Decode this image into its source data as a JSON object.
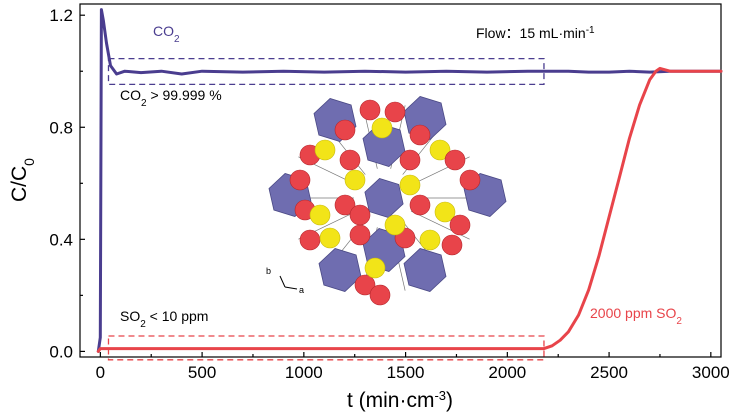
{
  "chart_data": {
    "type": "line",
    "xlabel": "t (min·cm",
    "xlabel_sup": "-3",
    "xlabel_close": ")",
    "ylabel": "C/C",
    "ylabel_sub": "0",
    "xlim": [
      -100,
      3050
    ],
    "ylim": [
      -0.02,
      1.24
    ],
    "x_ticks": [
      0,
      500,
      1000,
      1500,
      2000,
      2500,
      3000
    ],
    "y_ticks": [
      0.0,
      0.4,
      0.8,
      1.2
    ],
    "y_tick_labels": [
      "0.0",
      "0.4",
      "0.8",
      "1.2"
    ],
    "grid": false,
    "series": [
      {
        "name": "CO2",
        "color": "#4a3d8f",
        "x": [
          -10,
          0,
          5,
          15,
          30,
          50,
          80,
          120,
          200,
          300,
          400,
          500,
          700,
          900,
          1100,
          1300,
          1500,
          1700,
          1900,
          2100,
          2200,
          2300,
          2400,
          2500,
          2600,
          2700,
          2800,
          2900,
          3050
        ],
        "y": [
          0.0,
          0.05,
          1.22,
          1.18,
          1.1,
          1.02,
          0.99,
          1.0,
          0.995,
          1.0,
          0.99,
          1.0,
          0.997,
          1.0,
          0.997,
          1.0,
          0.997,
          1.0,
          0.997,
          1.0,
          1.0,
          1.0,
          0.997,
          0.997,
          1.0,
          0.997,
          1.0,
          1.0,
          1.0
        ]
      },
      {
        "name": "SO2",
        "color": "#e8444a",
        "x": [
          -10,
          0,
          100,
          500,
          1000,
          1500,
          2000,
          2180,
          2220,
          2260,
          2300,
          2350,
          2400,
          2450,
          2500,
          2550,
          2600,
          2650,
          2700,
          2730,
          2750,
          2800,
          2900,
          3050
        ],
        "y": [
          0.0,
          0.01,
          0.01,
          0.01,
          0.01,
          0.01,
          0.01,
          0.01,
          0.02,
          0.04,
          0.07,
          0.13,
          0.22,
          0.34,
          0.48,
          0.62,
          0.76,
          0.88,
          0.97,
          1.0,
          1.01,
          1.0,
          1.0,
          1.0
        ]
      }
    ],
    "annotations": {
      "co2_label": "CO",
      "co2_label_sub": "2",
      "flow": "Flow：15 mL·min",
      "flow_sup": "-1",
      "co2_purity": "CO",
      "co2_purity_sub": "2",
      "co2_purity_rest": " > 99.999 %",
      "so2_limit": "SO",
      "so2_limit_sub": "2",
      "so2_limit_rest": " < 10 ppm",
      "so2_conc": "2000 ppm  SO",
      "so2_conc_sub": "2",
      "inset_axis_b": "b",
      "inset_axis_a": "a"
    },
    "dashed_boxes": [
      {
        "color": "#4a3d8f",
        "x": [
          40,
          2180
        ],
        "y": [
          0.953,
          1.045
        ]
      },
      {
        "color": "#e8444a",
        "x": [
          40,
          2180
        ],
        "y": [
          -0.03,
          0.055
        ]
      }
    ]
  },
  "colors": {
    "co2": "#4a3d8f",
    "so2": "#e8444a",
    "polyhedron": "#6f6db0",
    "oxygen": "#e8444a",
    "sulfur": "#f2e418"
  }
}
